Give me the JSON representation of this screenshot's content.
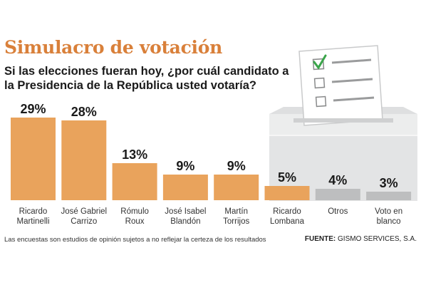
{
  "header": {
    "title": "Simulacro de votación",
    "question": "Si las elecciones fueran hoy, ¿por cuál candidato a la Presidencia de la República usted votaría?"
  },
  "chart_data": {
    "type": "bar",
    "categories": [
      [
        "Ricardo",
        "Martinelli"
      ],
      [
        "José Gabriel",
        "Carrizo"
      ],
      [
        "Rómulo",
        "Roux"
      ],
      [
        "José Isabel",
        "Blandón"
      ],
      [
        "Martín",
        "Torrijos"
      ],
      [
        "Ricardo",
        "Lombana"
      ],
      [
        "Otros"
      ],
      [
        "Voto en",
        "blanco"
      ]
    ],
    "values": [
      29,
      28,
      13,
      9,
      9,
      5,
      4,
      3
    ],
    "data_labels": [
      "29%",
      "28%",
      "13%",
      "9%",
      "9%",
      "5%",
      "4%",
      "3%"
    ],
    "ylim": [
      0,
      29
    ],
    "grid": false,
    "legend": "none",
    "colors": {
      "candidate": "#e9a35c",
      "other": "#bdbebf"
    },
    "bar_color_groups": [
      "candidate",
      "candidate",
      "candidate",
      "candidate",
      "candidate",
      "candidate",
      "other",
      "other"
    ]
  },
  "footer": {
    "note": "Las encuestas son estudios de opinión sujetos a no reflejar la certeza de los resultados",
    "source_label": "FUENTE:",
    "source_value": " GISMO SERVICES, S.A."
  },
  "icons": [
    "ballot-box-icon",
    "ballot-paper-icon",
    "checkbox-checked-icon",
    "checkbox-empty-icon"
  ],
  "colors": {
    "title": "#d9803a",
    "check": "#3aa54a",
    "box": "#e8e9ea"
  }
}
